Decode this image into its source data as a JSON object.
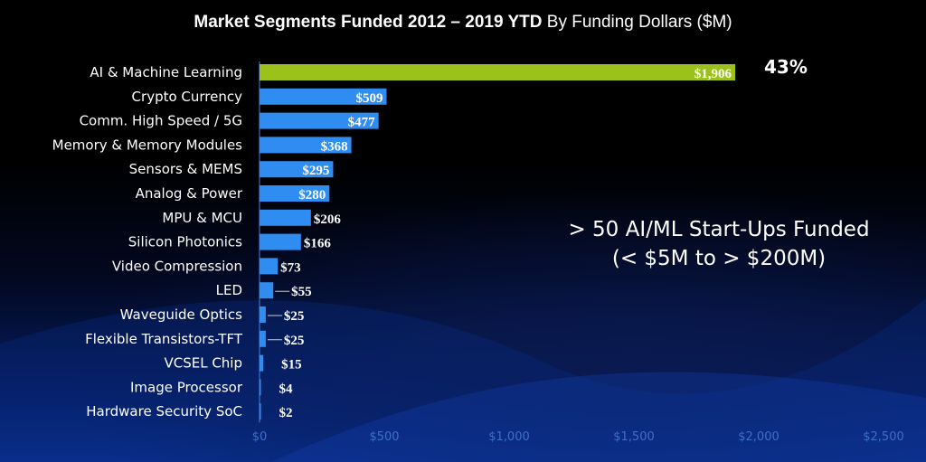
{
  "chart_data": {
    "type": "bar",
    "orientation": "horizontal",
    "title_bold": "Market Segments Funded  2012 – 2019 YTD",
    "title_regular": "By Funding Dollars ($M)",
    "categories": [
      "AI & Machine Learning",
      "Crypto Currency",
      "Comm. High Speed / 5G",
      "Memory & Memory Modules",
      "Sensors & MEMS",
      "Analog & Power",
      "MPU & MCU",
      "Silicon Photonics",
      "Video Compression",
      "LED",
      "Waveguide Optics",
      "Flexible Transistors-TFT",
      "VCSEL Chip",
      "Image Processor",
      "Hardware Security SoC"
    ],
    "values": [
      1906,
      509,
      477,
      368,
      295,
      280,
      206,
      166,
      73,
      55,
      25,
      25,
      15,
      4,
      2
    ],
    "value_labels": [
      "$1,906",
      "$509",
      "$477",
      "$368",
      "$295",
      "$280",
      "$206",
      "$166",
      "$73",
      "$55",
      "$25",
      "$25",
      "$15",
      "$4",
      "$2"
    ],
    "xlim": [
      0,
      2500
    ],
    "xticks": [
      0,
      500,
      1000,
      1500,
      2000,
      2500
    ],
    "xtick_labels": [
      "$0",
      "$500",
      "$1,000",
      "$1,500",
      "$2,000",
      "$2,500"
    ],
    "highlight_color": "#9bc21a",
    "bar_color": "#2f8cf0",
    "annotation_pct": "43%",
    "annotation_lines": [
      "> 50 AI/ML Start-Ups Funded",
      "(< $5M to > $200M)"
    ]
  }
}
